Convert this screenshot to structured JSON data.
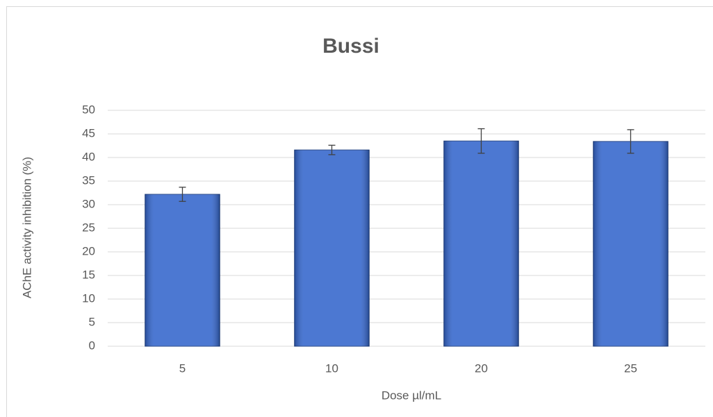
{
  "chart_data": {
    "type": "bar",
    "title": "Bussi",
    "x_label": "Dose µl/mL",
    "y_label": "AChE activity inhibition (%)",
    "categories": [
      "5",
      "10",
      "20",
      "25"
    ],
    "values": [
      32.2,
      41.6,
      43.5,
      43.4
    ],
    "errors": [
      1.5,
      1.0,
      2.6,
      2.5
    ],
    "color": "#3466cc",
    "ylim": [
      0,
      50
    ],
    "yticks": [
      0,
      5,
      10,
      15,
      20,
      25,
      30,
      35,
      40,
      45,
      50
    ],
    "grid": true
  }
}
